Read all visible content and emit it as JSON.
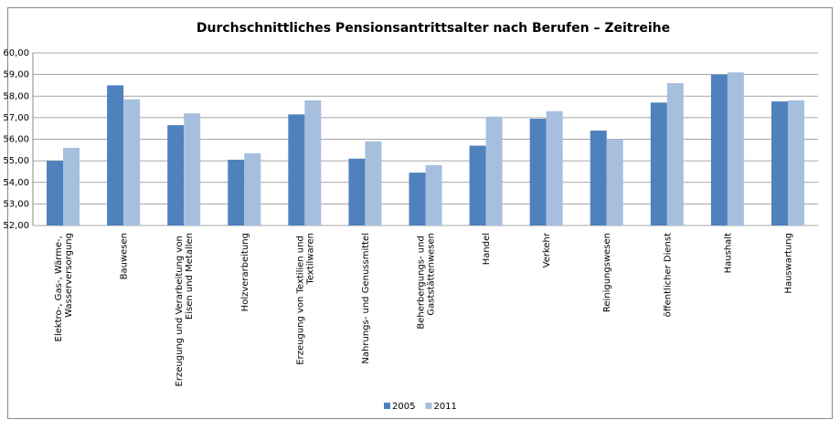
{
  "chart_data": {
    "type": "bar",
    "title": "Durchschnittliches Pensionsantrittsalter nach Berufen – Zeitreihe",
    "categories": [
      "Elektro-, Gas-, Wärme-, Wasserversorgung",
      "Bauwesen",
      "Erzeugung und Verarbeitung von Eisen und Metallen",
      "Holzverarbeitung",
      "Erzeugung von Textilien und Textilwaren",
      "Nahrungs- und Genussmittel",
      "Beherbergungs- und Gaststättenwesen",
      "Handel",
      "Verkehr",
      "Reinigungswesen",
      "öffentlicher Dienst",
      "Haushalt",
      "Hauswartung"
    ],
    "series": [
      {
        "name": "2005",
        "color": "#4f81bd",
        "values": [
          55.0,
          58.5,
          56.65,
          55.05,
          57.15,
          55.1,
          54.45,
          55.7,
          56.95,
          56.4,
          57.7,
          59.0,
          57.75
        ]
      },
      {
        "name": "2011",
        "color": "#a7bfde",
        "values": [
          55.6,
          57.85,
          57.2,
          55.35,
          57.8,
          55.9,
          54.8,
          57.05,
          57.3,
          56.0,
          58.6,
          59.1,
          57.8
        ]
      }
    ],
    "ylim": [
      52,
      60
    ],
    "yticks": [
      {
        "value": 52,
        "label": "52,00"
      },
      {
        "value": 53,
        "label": "53,00"
      },
      {
        "value": 54,
        "label": "54,00"
      },
      {
        "value": 55,
        "label": "55,00"
      },
      {
        "value": 56,
        "label": "56,00"
      },
      {
        "value": 57,
        "label": "57,00"
      },
      {
        "value": 58,
        "label": "58,00"
      },
      {
        "value": 59,
        "label": "59,00"
      },
      {
        "value": 60,
        "label": "60,00"
      }
    ],
    "grid": true,
    "legend": "bottom"
  }
}
